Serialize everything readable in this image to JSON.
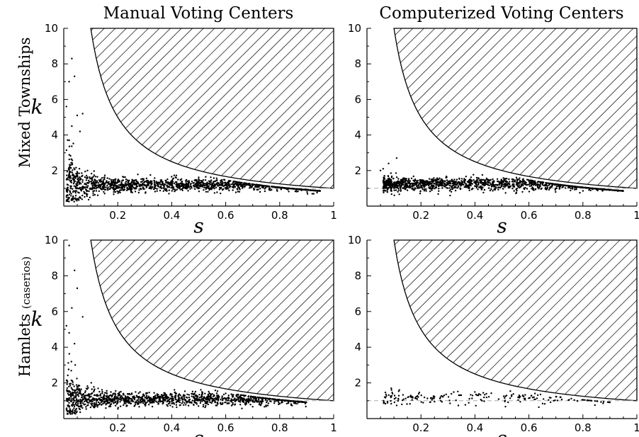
{
  "column_titles": [
    "Manual Voting Centers",
    "Computerized Voting Centers"
  ],
  "row_titles": [
    {
      "main": "Mixed Townships",
      "sub": ""
    },
    {
      "main": "Hamlets ",
      "sub": "(caserios)"
    }
  ],
  "chart_data": [
    {
      "type": "scatter",
      "panel": "Mixed Townships / Manual Voting Centers",
      "xlabel": "s",
      "ylabel": "k",
      "xlim": [
        0,
        1
      ],
      "ylim": [
        0,
        10
      ],
      "xticks": [
        "0.2",
        "0.4",
        "0.6",
        "0.8",
        "1"
      ],
      "yticks": [
        "2",
        "4",
        "6",
        "8",
        "10"
      ],
      "hatched_region": "k > 1/s",
      "reference_line_y": 1,
      "cloud": {
        "n": 1500,
        "s_range": [
          0.01,
          0.95
        ],
        "k_center": 1.2,
        "k_spread_low_s": 1.6,
        "seed": 11
      },
      "outliers": [
        [
          0.03,
          8.3
        ],
        [
          0.04,
          7.3
        ],
        [
          0.02,
          7.0
        ],
        [
          0.05,
          5.1
        ],
        [
          0.06,
          4.2
        ],
        [
          0.03,
          4.5
        ],
        [
          0.01,
          5.6
        ],
        [
          0.07,
          5.2
        ],
        [
          0.02,
          3.7
        ]
      ]
    },
    {
      "type": "scatter",
      "panel": "Mixed Townships / Computerized Voting Centers",
      "xlabel": "s",
      "ylabel": "",
      "xlim": [
        0,
        1
      ],
      "ylim": [
        0,
        10
      ],
      "xticks": [
        "0.2",
        "0.4",
        "0.6",
        "0.8",
        "1"
      ],
      "yticks": [
        "2",
        "4",
        "6",
        "8",
        "10"
      ],
      "hatched_region": "k > 1/s",
      "reference_line_y": 1,
      "cloud": {
        "n": 1400,
        "s_range": [
          0.06,
          0.95
        ],
        "k_center": 1.25,
        "k_spread_low_s": 0.3,
        "seed": 23
      },
      "outliers": [
        [
          0.08,
          2.4
        ],
        [
          0.06,
          2.1
        ],
        [
          0.05,
          2.0
        ],
        [
          0.11,
          2.7
        ]
      ]
    },
    {
      "type": "scatter",
      "panel": "Hamlets (caserios) / Manual Voting Centers",
      "xlabel": "s",
      "ylabel": "k",
      "xlim": [
        0,
        1
      ],
      "ylim": [
        0,
        10
      ],
      "xticks": [
        "0.2",
        "0.4",
        "0.6",
        "0.8",
        "1"
      ],
      "yticks": [
        "2",
        "4",
        "6",
        "8",
        "10"
      ],
      "hatched_region": "k > 1/s",
      "reference_line_y": 1,
      "cloud": {
        "n": 1400,
        "s_range": [
          0.01,
          0.9
        ],
        "k_center": 1.1,
        "k_spread_low_s": 1.5,
        "seed": 37
      },
      "outliers": [
        [
          0.04,
          8.3
        ],
        [
          0.02,
          9.7
        ],
        [
          0.05,
          7.3
        ],
        [
          0.03,
          6.2
        ],
        [
          0.01,
          5.2
        ],
        [
          0.07,
          5.7
        ],
        [
          0.02,
          4.8
        ],
        [
          0.04,
          4.2
        ]
      ]
    },
    {
      "type": "scatter",
      "panel": "Hamlets (caserios) / Computerized Voting Centers",
      "xlabel": "s",
      "ylabel": "",
      "xlim": [
        0,
        1
      ],
      "ylim": [
        0,
        10
      ],
      "xticks": [
        "0.2",
        "0.4",
        "0.6",
        "0.8",
        "1"
      ],
      "yticks": [
        "2",
        "4",
        "6",
        "8",
        "10"
      ],
      "hatched_region": "k > 1/s",
      "reference_line_y": 1,
      "cloud": {
        "n": 200,
        "s_range": [
          0.06,
          0.9
        ],
        "k_center": 1.15,
        "k_spread_low_s": 0.3,
        "seed": 53
      },
      "outliers": [
        [
          0.09,
          1.7
        ],
        [
          0.12,
          1.6
        ]
      ]
    }
  ]
}
